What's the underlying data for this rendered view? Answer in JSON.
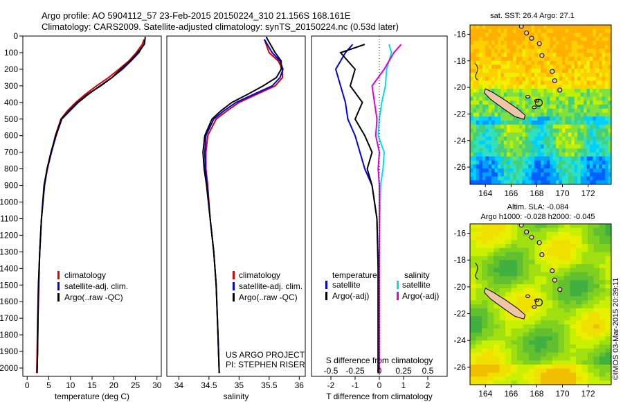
{
  "header": {
    "line1": "Argo profile: AO 5904112_57 23-Feb-2015 20150224_310 21.156S 168.161E",
    "line2": "Climatology: CARS2009. Satellite-adjusted climatology: synTS_20150224.nc (0.53d later)"
  },
  "colors": {
    "climatology": "#e00000",
    "satellite": "#0000e0",
    "argo": "#000000",
    "sat_salinity": "#00e0e0",
    "argo_salinity": "#e000e0",
    "land": "#f0c4a8"
  },
  "project": {
    "line1": "US ARGO PROJECT",
    "line2": "PI: STEPHEN RISER"
  },
  "credit": "©IMOS 03-Mar-2015 20:39:11",
  "chart_data": [
    {
      "id": "temperature",
      "type": "line",
      "xlabel": "temperature (deg C)",
      "xlim": [
        -1,
        31
      ],
      "xticks": [
        0,
        5,
        10,
        15,
        20,
        25,
        30
      ],
      "ylim": [
        2050,
        0
      ],
      "yticks": [
        0,
        100,
        200,
        300,
        400,
        500,
        600,
        700,
        800,
        900,
        1000,
        1100,
        1200,
        1300,
        1400,
        1500,
        1600,
        1700,
        1800,
        1900,
        2000
      ],
      "legend": [
        "climatology",
        "satellite-adj. clim.",
        "Argo(..raw -QC)"
      ],
      "series": [
        {
          "name": "climatology",
          "color": "#e00000",
          "x": [
            27.0,
            26.6,
            25.2,
            23.5,
            21.2,
            18.8,
            16.0,
            13.5,
            11.2,
            9.3,
            7.8,
            6.5,
            5.6,
            4.7,
            4.0,
            3.3,
            2.9,
            2.6,
            2.4,
            2.3,
            2.2
          ],
          "y": [
            20,
            50,
            100,
            150,
            200,
            250,
            300,
            350,
            400,
            450,
            500,
            600,
            700,
            800,
            900,
            1100,
            1300,
            1500,
            1700,
            1900,
            2030
          ]
        },
        {
          "name": "satellite-adj. clim.",
          "color": "#0000e0",
          "x": [
            27.2,
            27.0,
            25.8,
            24.0,
            22.0,
            19.6,
            16.8,
            14.2,
            11.8,
            9.9,
            8.0,
            6.7,
            5.6,
            4.6,
            4.0,
            3.3,
            2.9,
            2.7,
            2.5,
            2.4,
            2.3
          ],
          "y": [
            20,
            50,
            100,
            150,
            200,
            250,
            300,
            350,
            400,
            450,
            500,
            600,
            700,
            800,
            900,
            1100,
            1300,
            1500,
            1700,
            1900,
            2030
          ]
        },
        {
          "name": "Argo(..raw -QC)",
          "color": "#000000",
          "x": [
            27.3,
            27.1,
            25.5,
            23.8,
            21.6,
            19.6,
            17.0,
            14.0,
            11.6,
            9.6,
            7.9,
            6.6,
            5.5,
            4.6,
            3.9,
            3.3,
            2.9,
            2.6,
            2.5,
            2.4,
            2.3
          ],
          "y": [
            5,
            50,
            100,
            150,
            200,
            250,
            300,
            350,
            400,
            450,
            500,
            600,
            700,
            800,
            900,
            1100,
            1300,
            1500,
            1700,
            1900,
            2030
          ]
        }
      ]
    },
    {
      "id": "salinity",
      "type": "line",
      "xlabel": "salinity",
      "xlim": [
        33.8,
        36.1
      ],
      "xticks": [
        34,
        34.5,
        35,
        35.5,
        36
      ],
      "ylim": [
        2050,
        0
      ],
      "legend": [
        "climatology",
        "satellite-adj. clim.",
        "Argo(..raw -QC)"
      ],
      "series": [
        {
          "name": "climatology",
          "color": "#e00000",
          "x": [
            35.42,
            35.5,
            35.65,
            35.72,
            35.72,
            35.6,
            35.3,
            35.0,
            34.8,
            34.62,
            34.48,
            34.45,
            34.45,
            34.48,
            34.52,
            34.58,
            34.62,
            34.65,
            34.67
          ],
          "y": [
            20,
            100,
            150,
            200,
            250,
            300,
            350,
            400,
            450,
            500,
            600,
            700,
            800,
            900,
            1100,
            1300,
            1500,
            1800,
            2030
          ]
        },
        {
          "name": "satellite-adj. clim.",
          "color": "#0000e0",
          "x": [
            35.42,
            35.55,
            35.68,
            35.73,
            35.68,
            35.55,
            35.25,
            34.95,
            34.75,
            34.58,
            34.45,
            34.43,
            34.44,
            34.47,
            34.52,
            34.58,
            34.62,
            34.65,
            34.67
          ],
          "y": [
            20,
            100,
            150,
            200,
            250,
            300,
            350,
            400,
            450,
            500,
            600,
            700,
            800,
            900,
            1100,
            1300,
            1500,
            1800,
            2030
          ]
        },
        {
          "name": "Argo(..raw -QC)",
          "color": "#000000",
          "x": [
            35.45,
            35.6,
            35.7,
            35.7,
            35.62,
            35.4,
            35.15,
            34.88,
            34.7,
            34.55,
            34.43,
            34.4,
            34.42,
            34.46,
            34.52,
            34.58,
            34.62,
            34.65,
            34.67
          ],
          "y": [
            5,
            100,
            150,
            200,
            250,
            300,
            350,
            400,
            450,
            500,
            600,
            700,
            800,
            900,
            1100,
            1300,
            1500,
            1800,
            2030
          ]
        }
      ]
    },
    {
      "id": "differences",
      "type": "line",
      "xlabel": "T difference from climatology",
      "x2label": "S difference from climatology",
      "xlim": [
        -2.8,
        2.8
      ],
      "xticks": [
        -2,
        -1,
        0,
        1,
        2
      ],
      "x2ticks": [
        "-0.5",
        "-0.25",
        "0",
        "0.25",
        "0.5"
      ],
      "ylim": [
        2050,
        0
      ],
      "legend_titles": [
        "temperature",
        "salinity"
      ],
      "legend": [
        "satellite",
        "Argo(-adj)",
        "satellite",
        "Argo(-adj)"
      ],
      "series": [
        {
          "name": "satellite",
          "color": "#0000e0",
          "x": [
            -1.1,
            -1.4,
            -1.8,
            -1.6,
            -1.4,
            -1.3,
            -1.0,
            -0.8,
            -0.6,
            -0.3,
            -0.1,
            -0.05,
            -0.05,
            -0.05
          ],
          "y": [
            50,
            100,
            200,
            300,
            400,
            500,
            600,
            700,
            800,
            900,
            1100,
            1400,
            1700,
            2030
          ]
        },
        {
          "name": "Argo(-adj)",
          "color": "#000000",
          "x": [
            -0.6,
            -1.6,
            -1.0,
            -1.2,
            -0.7,
            -1.0,
            -0.6,
            -0.3,
            -0.5,
            -0.3,
            -0.1,
            -0.05,
            -0.05,
            -0.05
          ],
          "y": [
            50,
            100,
            200,
            300,
            400,
            500,
            600,
            700,
            800,
            900,
            1100,
            1400,
            1700,
            2030
          ]
        },
        {
          "name": "satellite",
          "color": "#00e0e0",
          "x": [
            0.4,
            0.5,
            0.3,
            0.25,
            0.1,
            0.0,
            -0.05,
            0.2,
            0.15,
            0.05,
            0.02,
            0.0,
            0.0,
            0.0
          ],
          "y": [
            50,
            100,
            200,
            300,
            400,
            500,
            600,
            700,
            800,
            900,
            1100,
            1400,
            1700,
            2030
          ]
        },
        {
          "name": "Argo(-adj)",
          "color": "#e000e0",
          "x": [
            0.9,
            0.6,
            0.2,
            -0.3,
            -0.2,
            -0.1,
            -0.15,
            0.0,
            -0.05,
            0.0,
            0.0,
            0.0,
            0.0,
            0.0
          ],
          "y": [
            50,
            100,
            200,
            300,
            400,
            500,
            600,
            700,
            800,
            900,
            1100,
            1400,
            1700,
            2030
          ]
        }
      ]
    },
    {
      "id": "sst_map",
      "type": "heatmap",
      "title": "sat. SST: 26.4  Argo: 27.1",
      "xticks": [
        164,
        166,
        168,
        170,
        172
      ],
      "yticks": [
        -16,
        -18,
        -20,
        -22,
        -24,
        -26
      ],
      "xlim": [
        162.8,
        173.8
      ],
      "ylim": [
        -27.3,
        -15.3
      ],
      "argo_position": {
        "lon": 168.161,
        "lat": -21.156
      }
    },
    {
      "id": "sla_map",
      "type": "heatmap",
      "title": "Altim. SLA: -0.084",
      "subtitle": "Argo h1000: -0.028 h2000: -0.045",
      "xticks": [
        164,
        166,
        168,
        170,
        172
      ],
      "yticks": [
        -16,
        -18,
        -20,
        -22,
        -24,
        -26
      ],
      "xlim": [
        162.8,
        173.8
      ],
      "ylim": [
        -27.3,
        -15.3
      ],
      "argo_position": {
        "lon": 168.161,
        "lat": -21.156
      }
    }
  ]
}
